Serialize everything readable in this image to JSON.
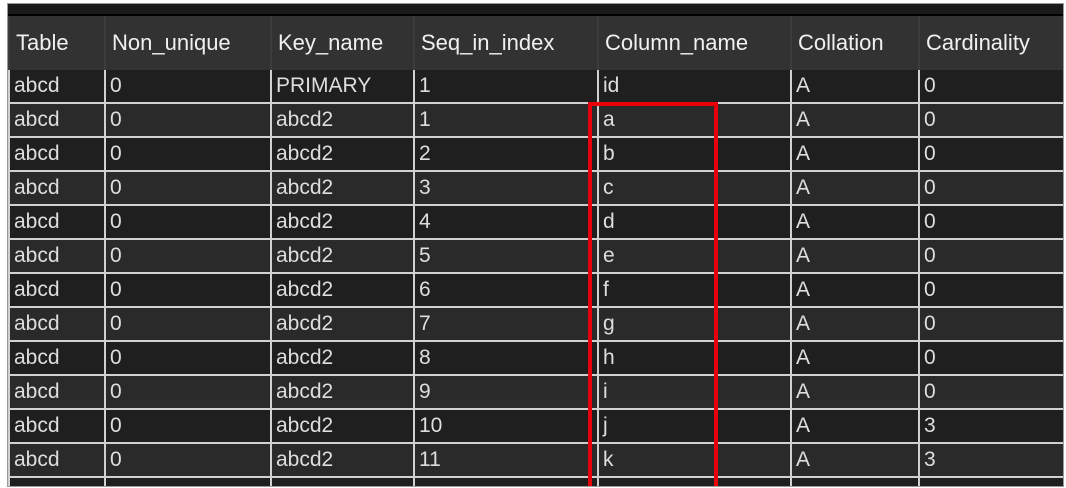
{
  "columns": [
    "Table",
    "Non_unique",
    "Key_name",
    "Seq_in_index",
    "Column_name",
    "Collation",
    "Cardinality"
  ],
  "rows": [
    [
      "abcd",
      "0",
      "PRIMARY",
      "1",
      "id",
      "A",
      "0"
    ],
    [
      "abcd",
      "0",
      "abcd2",
      "1",
      "a",
      "A",
      "0"
    ],
    [
      "abcd",
      "0",
      "abcd2",
      "2",
      "b",
      "A",
      "0"
    ],
    [
      "abcd",
      "0",
      "abcd2",
      "3",
      "c",
      "A",
      "0"
    ],
    [
      "abcd",
      "0",
      "abcd2",
      "4",
      "d",
      "A",
      "0"
    ],
    [
      "abcd",
      "0",
      "abcd2",
      "5",
      "e",
      "A",
      "0"
    ],
    [
      "abcd",
      "0",
      "abcd2",
      "6",
      "f",
      "A",
      "0"
    ],
    [
      "abcd",
      "0",
      "abcd2",
      "7",
      "g",
      "A",
      "0"
    ],
    [
      "abcd",
      "0",
      "abcd2",
      "8",
      "h",
      "A",
      "0"
    ],
    [
      "abcd",
      "0",
      "abcd2",
      "9",
      "i",
      "A",
      "0"
    ],
    [
      "abcd",
      "0",
      "abcd2",
      "10",
      "j",
      "A",
      "3"
    ],
    [
      "abcd",
      "0",
      "abcd2",
      "11",
      "k",
      "A",
      "3"
    ]
  ],
  "highlight": {
    "color": "#e8000b",
    "column": "Column_name"
  }
}
